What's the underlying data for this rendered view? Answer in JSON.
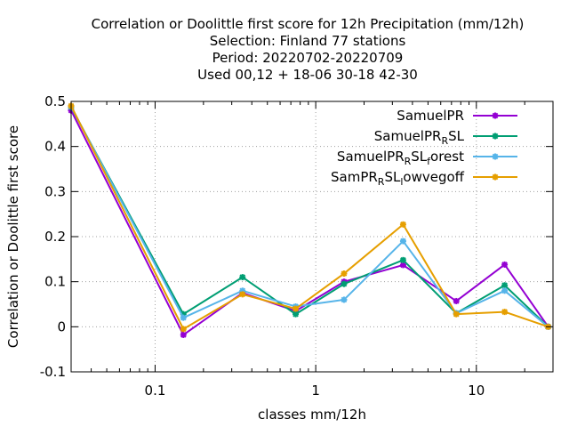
{
  "chart_data": {
    "type": "line",
    "title_lines": [
      "Correlation or Doolittle first score  for 12h Precipitation (mm/12h)",
      "Selection: Finland     77 stations",
      "Period: 20220702-20220709",
      "Used  00,12  + 18-06 30-18 42-30"
    ],
    "xlabel": "classes mm/12h",
    "ylabel": "Correlation or Doolittle first score",
    "x_scale": "log",
    "xlim": [
      0.03,
      30
    ],
    "ylim": [
      -0.1,
      0.5
    ],
    "x_ticks": [
      {
        "value": 0.1,
        "label": "0.1"
      },
      {
        "value": 1,
        "label": "1"
      },
      {
        "value": 10,
        "label": "10"
      }
    ],
    "y_ticks": [
      {
        "value": -0.1,
        "label": "-0.1"
      },
      {
        "value": 0,
        "label": "0"
      },
      {
        "value": 0.1,
        "label": "0.1"
      },
      {
        "value": 0.2,
        "label": "0.2"
      },
      {
        "value": 0.3,
        "label": "0.3"
      },
      {
        "value": 0.4,
        "label": "0.4"
      },
      {
        "value": 0.5,
        "label": "0.5"
      }
    ],
    "grid": true,
    "legend_position": "top-right",
    "x": [
      0.03,
      0.15,
      0.35,
      0.75,
      1.5,
      3.5,
      7.5,
      15,
      28
    ],
    "series": [
      {
        "name": "SamuelPR",
        "legend_parts": [
          {
            "t": "SamuelPR",
            "sub": false
          }
        ],
        "color": "#9400d3",
        "values": [
          0.48,
          -0.018,
          0.075,
          0.035,
          0.1,
          0.137,
          0.057,
          0.138,
          0.0
        ]
      },
      {
        "name": "SamuelPR_RSL",
        "legend_parts": [
          {
            "t": "SamuelPR",
            "sub": false
          },
          {
            "t": "R",
            "sub": true
          },
          {
            "t": "SL",
            "sub": false
          }
        ],
        "color": "#009e73",
        "values": [
          0.487,
          0.028,
          0.11,
          0.028,
          0.095,
          0.148,
          0.03,
          0.092,
          0.0
        ]
      },
      {
        "name": "SamuelPR_RSL_forest",
        "legend_parts": [
          {
            "t": "SamuelPR",
            "sub": false
          },
          {
            "t": "R",
            "sub": true
          },
          {
            "t": "SL",
            "sub": false
          },
          {
            "t": "f",
            "sub": true
          },
          {
            "t": "orest",
            "sub": false
          }
        ],
        "color": "#56b4e9",
        "values": [
          0.488,
          0.02,
          0.08,
          0.045,
          0.06,
          0.19,
          0.03,
          0.08,
          0.0
        ]
      },
      {
        "name": "SamPR_RSL_lowvegoff",
        "legend_parts": [
          {
            "t": "SamPR",
            "sub": false
          },
          {
            "t": "R",
            "sub": true
          },
          {
            "t": "SL",
            "sub": false
          },
          {
            "t": "l",
            "sub": true
          },
          {
            "t": "owvegoff",
            "sub": false
          }
        ],
        "color": "#e69f00",
        "values": [
          0.49,
          -0.005,
          0.072,
          0.04,
          0.118,
          0.227,
          0.028,
          0.033,
          0.0
        ]
      }
    ]
  }
}
